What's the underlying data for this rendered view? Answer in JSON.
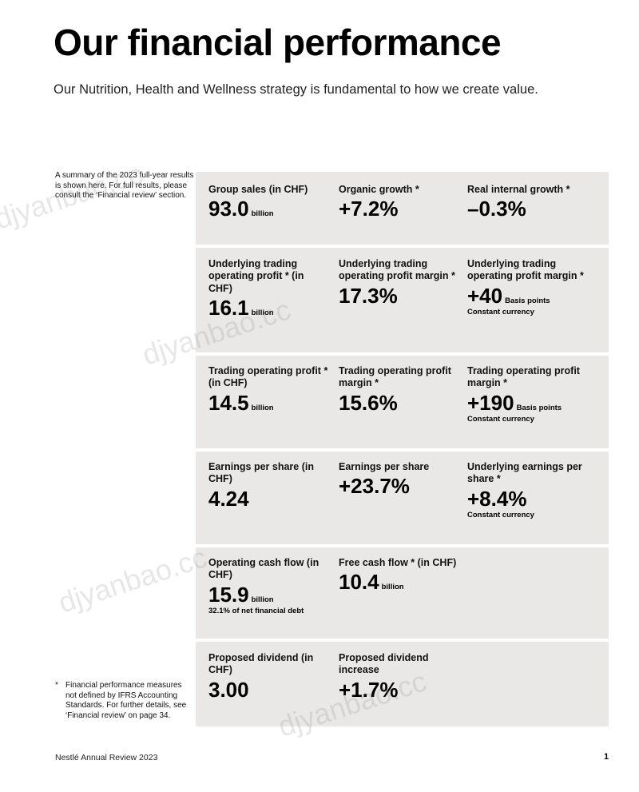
{
  "title": "Our financial performance",
  "subtitle": "Our Nutrition, Health and Wellness strategy is fundamental to how we create value.",
  "summary_note": "A summary of the 2023 full-year results is shown here. For full results, please consult the ‘Financial review’ section.",
  "footnote": {
    "marker": "*",
    "text": "Financial performance measures not defined by IFRS Accounting Standards. For further details, see ‘Financial review’ on page 34."
  },
  "metrics": [
    [
      {
        "label": "Group sales (in CHF)",
        "value": "93.0",
        "unit": "billion",
        "note": ""
      },
      {
        "label": "Organic growth *",
        "value": "+7.2%",
        "unit": "",
        "note": ""
      },
      {
        "label": "Real internal growth *",
        "value": "–0.3%",
        "unit": "",
        "note": ""
      }
    ],
    [
      {
        "label": "Underlying trading operating profit * (in CHF)",
        "value": "16.1",
        "unit": "billion",
        "note": ""
      },
      {
        "label": "Underlying trading operating profit margin *",
        "value": "17.3%",
        "unit": "",
        "note": ""
      },
      {
        "label": "Underlying trading operating profit margin *",
        "value": "+40",
        "unit": "Basis points",
        "note": "Constant currency"
      }
    ],
    [
      {
        "label": "Trading operating profit * (in CHF)",
        "value": "14.5",
        "unit": "billion",
        "note": ""
      },
      {
        "label": "Trading operating profit margin *",
        "value": "15.6%",
        "unit": "",
        "note": ""
      },
      {
        "label": "Trading operating profit margin *",
        "value": "+190",
        "unit": "Basis points",
        "note": "Constant currency"
      }
    ],
    [
      {
        "label": "Earnings per share (in CHF)",
        "value": "4.24",
        "unit": "",
        "note": ""
      },
      {
        "label": "Earnings per share",
        "value": "+23.7%",
        "unit": "",
        "note": ""
      },
      {
        "label": "Underlying earnings per share *",
        "value": "+8.4%",
        "unit": "",
        "note": "Constant currency"
      }
    ],
    [
      {
        "label": "Operating cash flow (in CHF)",
        "value": "15.9",
        "unit": "billion",
        "note": "32.1% of net financial debt"
      },
      {
        "label": "Free cash flow * (in CHF)",
        "value": "10.4",
        "unit": "billion",
        "note": ""
      }
    ],
    [
      {
        "label": "Proposed dividend (in CHF)",
        "value": "3.00",
        "unit": "",
        "note": ""
      },
      {
        "label": "Proposed dividend increase",
        "value": "+1.7%",
        "unit": "",
        "note": ""
      }
    ]
  ],
  "watermark": "djyanbao.cc",
  "footer": {
    "left": "Nestlé Annual Review 2023",
    "page": "1"
  }
}
